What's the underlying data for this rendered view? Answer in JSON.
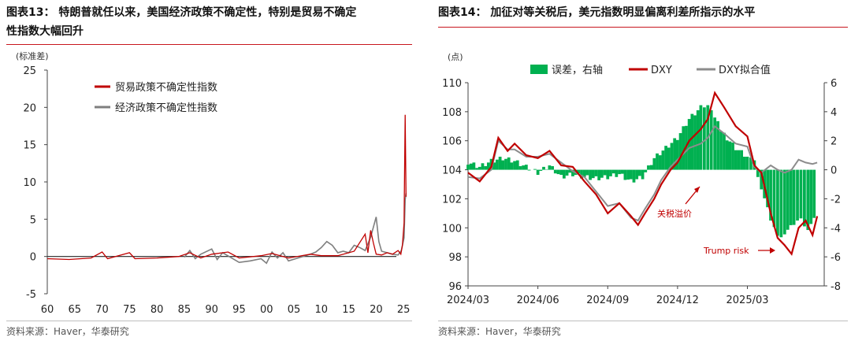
{
  "left": {
    "title_line1": "图表13： 特朗普就任以来，美国经济政策不确定性，特别是贸易不确定",
    "title_line2": "性指数大幅回升",
    "source": "资料来源：Haver，华泰研究",
    "chart_data": {
      "type": "line",
      "unit": "(标准差)",
      "x_ticks": [
        "60",
        "65",
        "70",
        "75",
        "80",
        "85",
        "90",
        "95",
        "00",
        "05",
        "10",
        "15",
        "20",
        "25"
      ],
      "y_ticks": [
        25,
        20,
        15,
        10,
        5,
        0,
        -5
      ],
      "ylim": [
        -5,
        25
      ],
      "xlim": [
        1960,
        2025.7
      ],
      "legend_position": "top-left",
      "series": [
        {
          "name": "贸易政策不确定性指数",
          "color": "#c00000",
          "points": [
            [
              1960,
              -0.3
            ],
            [
              1964,
              -0.4
            ],
            [
              1968,
              -0.2
            ],
            [
              1970,
              0.6
            ],
            [
              1971,
              -0.3
            ],
            [
              1975,
              0.5
            ],
            [
              1976,
              -0.3
            ],
            [
              1980,
              -0.2
            ],
            [
              1984,
              0
            ],
            [
              1986,
              0.5
            ],
            [
              1988,
              -0.2
            ],
            [
              1990,
              0.3
            ],
            [
              1993,
              0.6
            ],
            [
              1995,
              -0.2
            ],
            [
              1999,
              0.1
            ],
            [
              2001,
              0.4
            ],
            [
              2004,
              -0.2
            ],
            [
              2008,
              0.3
            ],
            [
              2010,
              0.1
            ],
            [
              2013,
              0.1
            ],
            [
              2016,
              0.7
            ],
            [
              2018,
              3.0
            ],
            [
              2018.5,
              0.5
            ],
            [
              2019,
              3.5
            ],
            [
              2019.5,
              1.8
            ],
            [
              2020,
              0.3
            ],
            [
              2021,
              0.2
            ],
            [
              2022,
              0.5
            ],
            [
              2023,
              0.3
            ],
            [
              2024,
              0.8
            ],
            [
              2024.5,
              0.3
            ],
            [
              2024.8,
              1.5
            ],
            [
              2025.1,
              4.5
            ],
            [
              2025.3,
              19.0
            ],
            [
              2025.45,
              8.0
            ]
          ]
        },
        {
          "name": "经济政策不确定性指数",
          "color": "#7f7f7f",
          "points": [
            [
              1985,
              -0.1
            ],
            [
              1986,
              0.8
            ],
            [
              1987,
              -0.3
            ],
            [
              1988,
              0.3
            ],
            [
              1990,
              1.0
            ],
            [
              1991,
              -0.4
            ],
            [
              1992,
              0.5
            ],
            [
              1995,
              -0.8
            ],
            [
              1997,
              -0.6
            ],
            [
              1999,
              -0.3
            ],
            [
              2000,
              -0.9
            ],
            [
              2001,
              0.6
            ],
            [
              2002,
              -0.2
            ],
            [
              2003,
              0.5
            ],
            [
              2004,
              -0.6
            ],
            [
              2008,
              0.3
            ],
            [
              2009,
              0.6
            ],
            [
              2010,
              1.2
            ],
            [
              2011,
              2.0
            ],
            [
              2012,
              1.5
            ],
            [
              2013,
              0.5
            ],
            [
              2014,
              0.7
            ],
            [
              2015,
              0.5
            ],
            [
              2016,
              1.5
            ],
            [
              2017,
              1.2
            ],
            [
              2018,
              0.8
            ],
            [
              2019,
              2.6
            ],
            [
              2020,
              5.3
            ],
            [
              2020.5,
              2.0
            ],
            [
              2021,
              0.7
            ],
            [
              2022,
              0.5
            ],
            [
              2023,
              0.3
            ],
            [
              2024,
              0.2
            ],
            [
              2024.6,
              0.8
            ],
            [
              2025.1,
              2.5
            ],
            [
              2025.3,
              7.6
            ],
            [
              2025.45,
              8.5
            ]
          ]
        }
      ]
    }
  },
  "right": {
    "title": "图表14： 加征对等关税后，美元指数明显偏离利差所指示的水平",
    "source": "资料来源：Haver，华泰研究",
    "chart_data": {
      "type": "line+bar",
      "unit_left": "(点)",
      "x_ticks": [
        "2024/03",
        "2024/06",
        "2024/09",
        "2024/12",
        "2025/03"
      ],
      "x_tick_months": [
        0,
        3,
        6,
        9,
        12
      ],
      "xlim_months": [
        0,
        15.3
      ],
      "y_left_ticks": [
        110,
        108,
        106,
        104,
        102,
        100,
        98,
        96
      ],
      "ylim_left": [
        96,
        110
      ],
      "y_right_ticks": [
        "6",
        "4",
        "2",
        "0",
        "-2",
        "-4",
        "-6",
        "-8"
      ],
      "ylim_right": [
        -8,
        6
      ],
      "legend_position": "top",
      "series": [
        {
          "name": "误差，右轴",
          "color": "#00b050",
          "kind": "bar",
          "points": [
            [
              0,
              0.5
            ],
            [
              0.5,
              0.2
            ],
            [
              1,
              0.6
            ],
            [
              1.5,
              0.8
            ],
            [
              2,
              0.6
            ],
            [
              2.5,
              0.2
            ],
            [
              3,
              -0.2
            ],
            [
              3.5,
              0.3
            ],
            [
              4,
              -0.5
            ],
            [
              4.5,
              -0.3
            ],
            [
              5,
              -0.5
            ],
            [
              5.5,
              -0.6
            ],
            [
              6,
              -0.5
            ],
            [
              6.5,
              -0.3
            ],
            [
              7,
              -0.8
            ],
            [
              7.5,
              -0.5
            ],
            [
              8,
              0.8
            ],
            [
              8.5,
              1.5
            ],
            [
              9,
              2.2
            ],
            [
              9.5,
              3.5
            ],
            [
              10,
              4.3
            ],
            [
              10.3,
              4.6
            ],
            [
              10.6,
              3.6
            ],
            [
              11,
              2.4
            ],
            [
              11.5,
              1.5
            ],
            [
              12,
              0.9
            ],
            [
              12.3,
              0.5
            ],
            [
              12.6,
              -1.2
            ],
            [
              13,
              -3.5
            ],
            [
              13.3,
              -4.7
            ],
            [
              13.6,
              -4.3
            ],
            [
              14,
              -3.8
            ],
            [
              14.3,
              -3.5
            ],
            [
              14.6,
              -4.0
            ],
            [
              15,
              -3.2
            ]
          ]
        },
        {
          "name": "DXY",
          "color": "#c00000",
          "kind": "line",
          "points": [
            [
              0,
              103.8
            ],
            [
              0.5,
              103.2
            ],
            [
              1,
              104.2
            ],
            [
              1.3,
              106.2
            ],
            [
              1.7,
              105.3
            ],
            [
              2,
              105.8
            ],
            [
              2.5,
              105.0
            ],
            [
              3,
              104.8
            ],
            [
              3.5,
              105.3
            ],
            [
              4,
              104.3
            ],
            [
              4.5,
              104.2
            ],
            [
              5,
              103.2
            ],
            [
              5.5,
              102.3
            ],
            [
              6,
              101.0
            ],
            [
              6.5,
              101.7
            ],
            [
              7,
              100.8
            ],
            [
              7.3,
              100.2
            ],
            [
              7.6,
              101.0
            ],
            [
              8,
              102.0
            ],
            [
              8.3,
              103.0
            ],
            [
              8.7,
              104.0
            ],
            [
              9,
              104.5
            ],
            [
              9.5,
              106.0
            ],
            [
              10,
              106.8
            ],
            [
              10.3,
              107.5
            ],
            [
              10.6,
              109.3
            ],
            [
              11,
              108.3
            ],
            [
              11.5,
              107.0
            ],
            [
              12,
              106.3
            ],
            [
              12.3,
              104.3
            ],
            [
              12.6,
              103.8
            ],
            [
              13,
              101.0
            ],
            [
              13.3,
              99.3
            ],
            [
              13.6,
              98.8
            ],
            [
              13.9,
              98.2
            ],
            [
              14.2,
              100.0
            ],
            [
              14.5,
              100.5
            ],
            [
              14.8,
              99.5
            ],
            [
              15,
              100.8
            ]
          ]
        },
        {
          "name": "DXY拟合值",
          "color": "#8c8c8c",
          "kind": "line",
          "points": [
            [
              0,
              103.5
            ],
            [
              0.5,
              103.4
            ],
            [
              1,
              104.0
            ],
            [
              1.3,
              106.0
            ],
            [
              1.7,
              105.4
            ],
            [
              2,
              105.4
            ],
            [
              2.5,
              104.9
            ],
            [
              3,
              104.9
            ],
            [
              3.5,
              105.1
            ],
            [
              4,
              104.5
            ],
            [
              4.5,
              103.9
            ],
            [
              5,
              103.5
            ],
            [
              5.5,
              102.5
            ],
            [
              6,
              101.5
            ],
            [
              6.5,
              101.7
            ],
            [
              7,
              100.7
            ],
            [
              7.3,
              100.5
            ],
            [
              7.6,
              101.3
            ],
            [
              8,
              102.3
            ],
            [
              8.3,
              103.3
            ],
            [
              8.7,
              104.2
            ],
            [
              9,
              104.7
            ],
            [
              9.5,
              105.5
            ],
            [
              10,
              105.8
            ],
            [
              10.3,
              106.2
            ],
            [
              10.6,
              107.0
            ],
            [
              11,
              106.5
            ],
            [
              11.5,
              105.8
            ],
            [
              12,
              105.6
            ],
            [
              12.3,
              104.2
            ],
            [
              12.6,
              103.8
            ],
            [
              13,
              104.3
            ],
            [
              13.3,
              104.0
            ],
            [
              13.6,
              103.8
            ],
            [
              13.9,
              104.0
            ],
            [
              14.2,
              104.7
            ],
            [
              14.5,
              104.5
            ],
            [
              14.8,
              104.4
            ],
            [
              15,
              104.5
            ]
          ]
        }
      ],
      "annotations": [
        {
          "text": "关税溢价",
          "color": "#c00000"
        },
        {
          "text": "Trump risk",
          "color": "#c00000"
        }
      ]
    }
  }
}
